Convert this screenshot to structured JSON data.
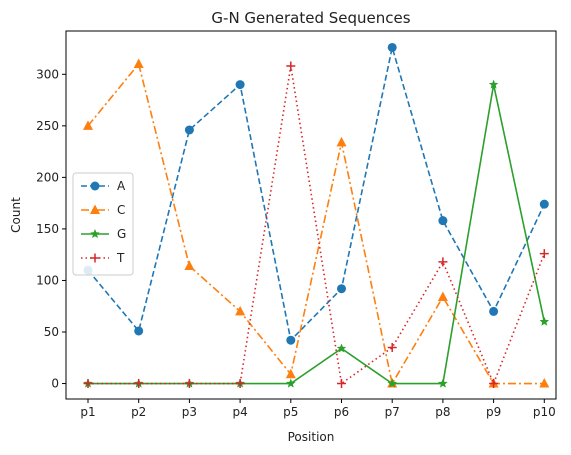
{
  "chart_data": {
    "type": "line",
    "title": "G-N Generated Sequences",
    "xlabel": "Position",
    "ylabel": "Count",
    "categories": [
      "p1",
      "p2",
      "p3",
      "p4",
      "p5",
      "p6",
      "p7",
      "p8",
      "p9",
      "p10"
    ],
    "ylim": [
      -15,
      342
    ],
    "yticks": [
      0,
      50,
      100,
      150,
      200,
      250,
      300
    ],
    "grid": false,
    "legend": "center-left",
    "series": [
      {
        "name": "A",
        "values": [
          110,
          51,
          246,
          290,
          42,
          92,
          326,
          158,
          70,
          174
        ],
        "color": "#1f77b4",
        "linestyle": "dashed",
        "marker": "circle"
      },
      {
        "name": "C",
        "values": [
          250,
          310,
          114,
          70,
          9,
          234,
          0,
          84,
          0,
          0
        ],
        "color": "#ff7f0e",
        "linestyle": "dashdot",
        "marker": "triangle"
      },
      {
        "name": "G",
        "values": [
          0,
          0,
          0,
          0,
          0,
          34,
          0,
          0,
          290,
          60
        ],
        "color": "#2ca02c",
        "linestyle": "solid",
        "marker": "star"
      },
      {
        "name": "T",
        "values": [
          0,
          0,
          0,
          0,
          308,
          0,
          35,
          118,
          0,
          126
        ],
        "color": "#d62728",
        "linestyle": "dotted",
        "marker": "plus"
      }
    ]
  }
}
